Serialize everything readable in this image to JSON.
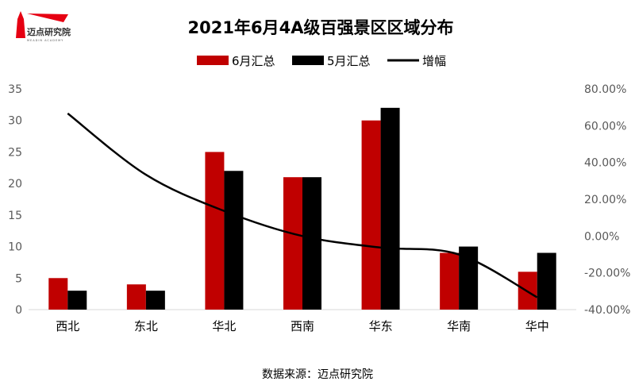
{
  "logo": {
    "text": "迈点研究院",
    "subtext": "MEADIN ACADEMY",
    "color": "#e60012"
  },
  "source": "数据来源：迈点研究院",
  "chart_data": {
    "type": "bar+line",
    "title": "2021年6月4A级百强景区区域分布",
    "categories": [
      "西北",
      "东北",
      "华北",
      "西南",
      "华东",
      "华南",
      "华中"
    ],
    "series": [
      {
        "name": "6月汇总",
        "type": "bar",
        "axis": "left",
        "color": "#c00000",
        "values": [
          5,
          4,
          25,
          21,
          30,
          9,
          6
        ]
      },
      {
        "name": "5月汇总",
        "type": "bar",
        "axis": "left",
        "color": "#000000",
        "values": [
          3,
          3,
          22,
          21,
          32,
          10,
          9
        ]
      },
      {
        "name": "增幅",
        "type": "line",
        "axis": "right",
        "color": "#000000",
        "smooth": true,
        "values": [
          66.67,
          33.33,
          13.64,
          0,
          -6.25,
          -10,
          -33.33
        ]
      }
    ],
    "left_axis": {
      "min": 0,
      "max": 35,
      "ticks": [
        "0",
        "5",
        "10",
        "15",
        "20",
        "25",
        "30",
        "35"
      ]
    },
    "right_axis": {
      "min": -40,
      "max": 80,
      "ticks": [
        "-40.00%",
        "-20.00%",
        "0.00%",
        "20.00%",
        "40.00%",
        "60.00%",
        "80.00%"
      ]
    },
    "legend_position": "top",
    "grid": false
  }
}
